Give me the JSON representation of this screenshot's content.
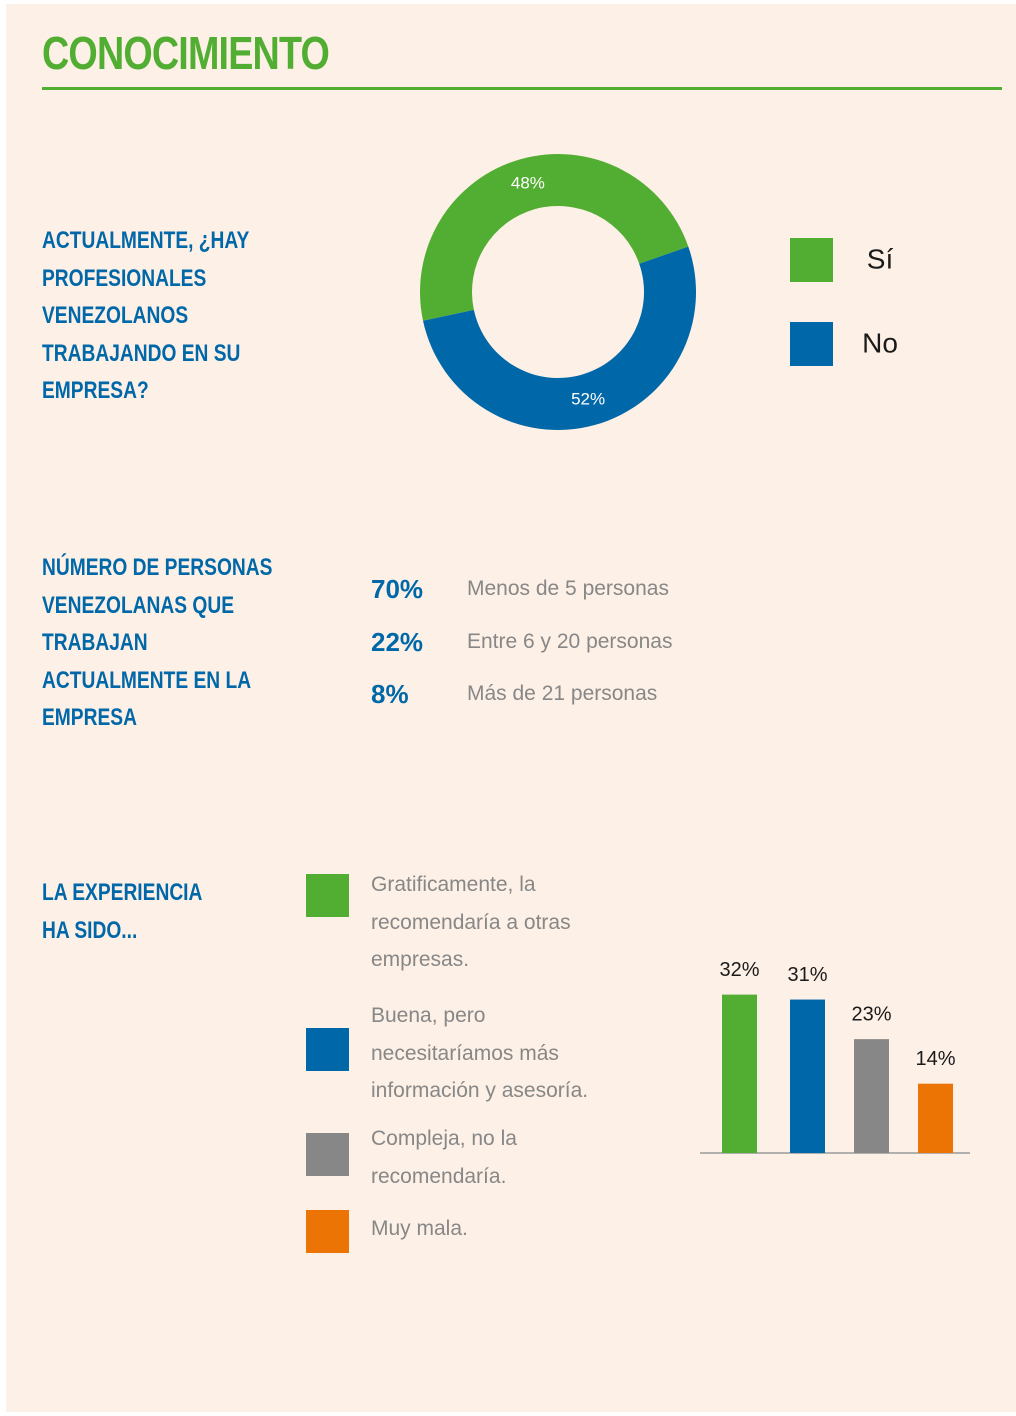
{
  "title": "CONOCIMIENTO",
  "chart_data": [
    {
      "type": "donut",
      "title": "ACTUALMENTE, ¿HAY PROFESIONALES VENEZOLANOS TRABAJANDO EN SU EMPRESA?",
      "categories": [
        "Sí",
        "No"
      ],
      "values": [
        48,
        52
      ],
      "value_labels": [
        "48%",
        "52%"
      ],
      "colors": [
        "#52ae32",
        "#0068a8"
      ]
    },
    {
      "type": "bar",
      "title": "LA EXPERIENCIA HA SIDO...",
      "categories": [
        "Gratificamente, la recomendaría a otras empresas.",
        "Buena, pero necesitaríamos más información y asesoría.",
        "Compleja, no la recomendaría.",
        "Muy mala."
      ],
      "values": [
        32,
        31,
        23,
        14
      ],
      "value_labels": [
        "32%",
        "31%",
        "23%",
        "14%"
      ],
      "colors": [
        "#52ae32",
        "#0068a8",
        "#878787",
        "#ec7404"
      ]
    }
  ],
  "stats": {
    "title": "NÚMERO DE PERSONAS VENEZOLANAS QUE TRABAJAN ACTUALMENTE EN LA EMPRESA",
    "rows": [
      {
        "value": "70%",
        "label": "Menos de 5 personas"
      },
      {
        "value": "22%",
        "label": "Entre 6 y 20 personas"
      },
      {
        "value": "8%",
        "label": "Más de 21 personas"
      }
    ]
  }
}
